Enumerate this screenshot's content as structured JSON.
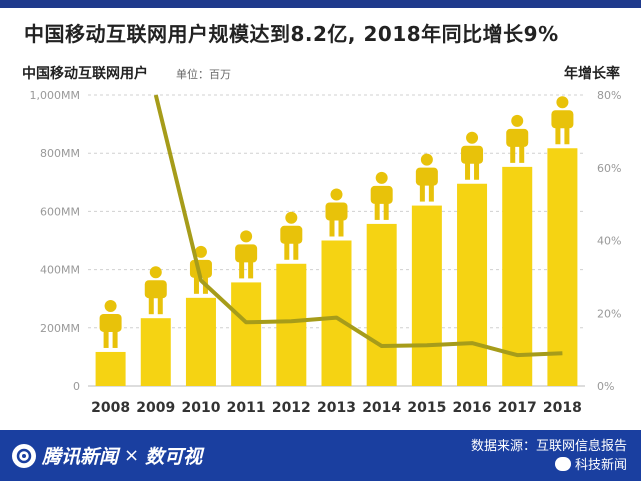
{
  "title": "中国移动互联网用户规模达到8.2亿, 2018年同比增长9%",
  "footer": {
    "brand_name": "腾讯新闻",
    "separator": "×",
    "partner": "数可视",
    "source": "数据来源：互联网信息报告",
    "watermark": "科技新闻"
  },
  "colors": {
    "bar": "#f5d313",
    "figure": "#e8c20a",
    "line": "#a69c1a",
    "footer_bg": "#1a3fa0",
    "grid": "#d0d0d0"
  },
  "chart_data": {
    "type": "bar",
    "left_axis_label": "中国移动互联网用户",
    "unit_label": "单位：百万",
    "right_axis_label": "年增长率",
    "categories": [
      "2008",
      "2009",
      "2010",
      "2011",
      "2012",
      "2013",
      "2014",
      "2015",
      "2016",
      "2017",
      "2018"
    ],
    "series": [
      {
        "values": [
          117,
          233,
          303,
          356,
          420,
          500,
          557,
          620,
          695,
          753,
          817
        ]
      },
      {
        "values": [
          null,
          80,
          29,
          17.5,
          17.8,
          18.8,
          11,
          11.2,
          11.8,
          8.5,
          9
        ]
      }
    ],
    "ylim": [
      0,
      1000
    ],
    "y_ticks": [
      "0",
      "200MM",
      "400MM",
      "600MM",
      "800MM",
      "1,000MM"
    ],
    "y2lim": [
      0,
      80
    ],
    "y2_ticks": [
      "0%",
      "20%",
      "40%",
      "60%",
      "80%"
    ],
    "grid": true
  }
}
